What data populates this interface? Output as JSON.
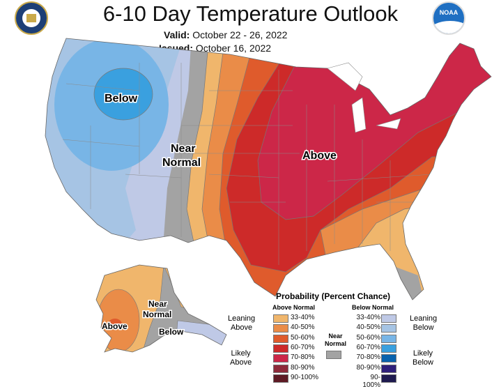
{
  "header": {
    "title": "6-10 Day Temperature Outlook",
    "valid_label": "Valid:",
    "valid_value": "October 22 - 26, 2022",
    "issued_label": "Issued:",
    "issued_value": "October 16, 2022",
    "left_logo": "doc-seal",
    "right_logo": "noaa-logo",
    "right_logo_text": "NOAA"
  },
  "map_labels": {
    "below": "Below",
    "near": "Near",
    "normal": "Normal",
    "above": "Above",
    "ak_above": "Above",
    "ak_near": "Near",
    "ak_normal": "Normal",
    "ak_below": "Below"
  },
  "legend": {
    "title": "Probability (Percent Chance)",
    "above_header": "Above Normal",
    "below_header": "Below Normal",
    "near_normal_line1": "Near",
    "near_normal_line2": "Normal",
    "near_normal_color": "#a3a3a3",
    "leaning_above": [
      "Leaning",
      "Above"
    ],
    "likely_above": [
      "Likely",
      "Above"
    ],
    "leaning_below": [
      "Leaning",
      "Below"
    ],
    "likely_below": [
      "Likely",
      "Below"
    ],
    "above": [
      {
        "range": "33-40%",
        "color": "#f0b66c"
      },
      {
        "range": "40-50%",
        "color": "#ea8c48"
      },
      {
        "range": "50-60%",
        "color": "#df5b2c"
      },
      {
        "range": "60-70%",
        "color": "#cd2a29"
      },
      {
        "range": "70-80%",
        "color": "#cc2748"
      },
      {
        "range": "80-90%",
        "color": "#8e2a3a"
      },
      {
        "range": "90-100%",
        "color": "#5e1a24"
      }
    ],
    "below": [
      {
        "range": "33-40%",
        "color": "#bfc9e6"
      },
      {
        "range": "40-50%",
        "color": "#a6c4e4"
      },
      {
        "range": "50-60%",
        "color": "#78b5e6"
      },
      {
        "range": "60-70%",
        "color": "#3aa0df"
      },
      {
        "range": "70-80%",
        "color": "#0962ad"
      },
      {
        "range": "80-90%",
        "color": "#2e1f7a"
      },
      {
        "range": "90-100%",
        "color": "#1e1a4f"
      }
    ]
  }
}
